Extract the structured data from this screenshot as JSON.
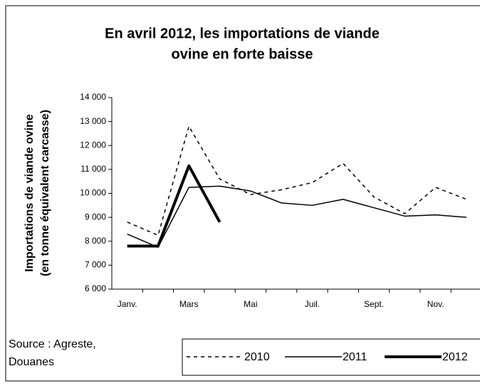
{
  "chart_data": {
    "type": "line",
    "title": [
      "En avril 2012, les importations de viande",
      "ovine en forte baisse"
    ],
    "y_label": [
      "Importations de viande ovine",
      "(en tonne équivalent carcasse)"
    ],
    "source": [
      "Source : Agreste,",
      "Douanes"
    ],
    "categories": [
      "Janv.",
      null,
      "Mars",
      null,
      "Mai",
      null,
      "Juil.",
      null,
      "Sept.",
      null,
      "Nov.",
      null
    ],
    "series": [
      {
        "name": "2010",
        "color": "#000000",
        "dash": "5,5",
        "width": 1.5,
        "values": [
          8800,
          8250,
          12800,
          10600,
          9950,
          10150,
          10450,
          11250,
          9850,
          9150,
          10250,
          9750
        ]
      },
      {
        "name": "2011",
        "color": "#000000",
        "dash": "none",
        "width": 1.5,
        "values": [
          8300,
          7750,
          10250,
          10300,
          10100,
          9600,
          9500,
          9750,
          9400,
          9050,
          9100,
          9000
        ]
      },
      {
        "name": "2012",
        "color": "#000000",
        "dash": "none",
        "width": 4,
        "values": [
          7800,
          7800,
          11150,
          8800,
          null,
          null,
          null,
          null,
          null,
          null,
          null,
          null
        ]
      }
    ],
    "ylim": [
      6000,
      14000
    ],
    "yticks": [
      {
        "value": 6000,
        "label": "6 000"
      },
      {
        "value": 7000,
        "label": "7 000"
      },
      {
        "value": 8000,
        "label": "8 000"
      },
      {
        "value": 9000,
        "label": "9 000"
      },
      {
        "value": 10000,
        "label": "10 000"
      },
      {
        "value": 11000,
        "label": "11 000"
      },
      {
        "value": 12000,
        "label": "12 000"
      },
      {
        "value": 13000,
        "label": "13 000"
      },
      {
        "value": 14000,
        "label": "14 000"
      }
    ],
    "grid": false,
    "legend": "bottom"
  }
}
